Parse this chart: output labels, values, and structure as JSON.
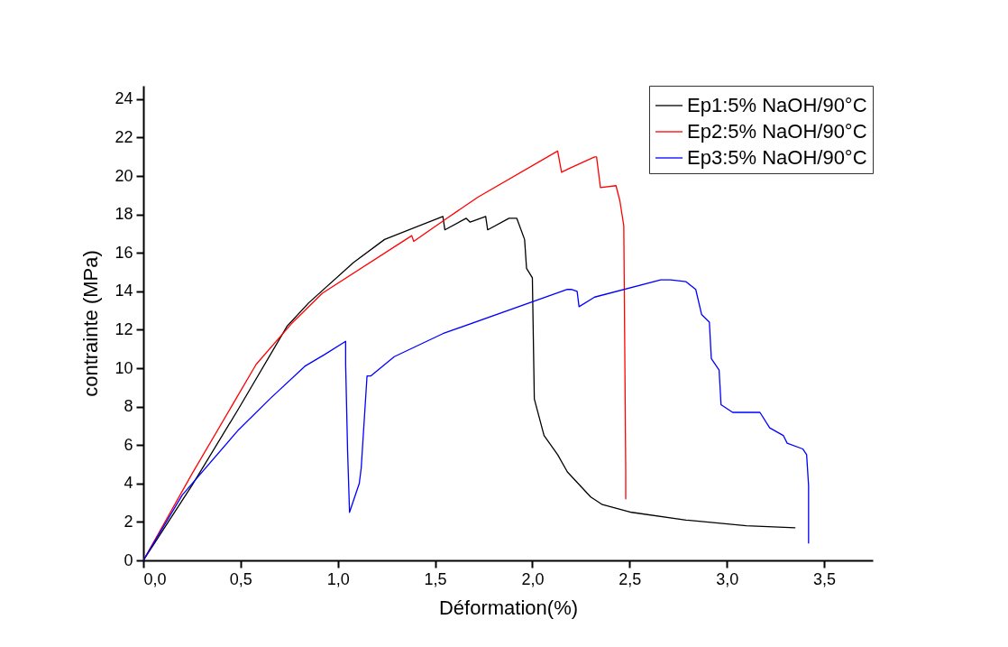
{
  "chart_data": {
    "type": "line",
    "xlabel": "Déformation(%)",
    "ylabel": "contrainte (MPa)",
    "xlim": [
      0,
      3.75
    ],
    "ylim": [
      0,
      24.7
    ],
    "xticks": [
      {
        "value": 0,
        "label": "0,0"
      },
      {
        "value": 0.5,
        "label": "0,5"
      },
      {
        "value": 1,
        "label": "1,0"
      },
      {
        "value": 1.5,
        "label": "1,5"
      },
      {
        "value": 2,
        "label": "2,0"
      },
      {
        "value": 2.5,
        "label": "2,5"
      },
      {
        "value": 3,
        "label": "3,0"
      },
      {
        "value": 3.5,
        "label": "3,5"
      }
    ],
    "yticks": [
      0,
      2,
      4,
      6,
      8,
      10,
      12,
      14,
      16,
      18,
      20,
      22,
      24
    ],
    "grid": false,
    "legend": "top right",
    "line_style": "solid",
    "marker": "none",
    "series": [
      {
        "name": "Ep1:5% NaOH/90°C",
        "color": "#000000",
        "x": [
          0,
          0.25,
          0.49,
          0.74,
          0.85,
          1.08,
          1.24,
          1.54,
          1.55,
          1.66,
          1.68,
          1.76,
          1.77,
          1.88,
          1.92,
          1.96,
          1.97,
          2.0,
          2.01,
          2.06,
          2.13,
          2.18,
          2.3,
          2.36,
          2.51,
          2.79,
          3.1,
          3.35
        ],
        "values": [
          0,
          3.9,
          7.9,
          12.2,
          13.4,
          15.5,
          16.7,
          17.9,
          17.2,
          17.8,
          17.6,
          17.9,
          17.2,
          17.8,
          17.8,
          16.7,
          15.2,
          14.7,
          8.4,
          6.5,
          5.5,
          4.6,
          3.3,
          2.9,
          2.5,
          2.1,
          1.8,
          1.7
        ]
      },
      {
        "name": "Ep2:5% NaOH/90°C",
        "color": "#ff0000",
        "x": [
          0,
          0.25,
          0.58,
          0.76,
          0.92,
          1.38,
          1.39,
          1.56,
          1.72,
          2.13,
          2.15,
          2.19,
          2.32,
          2.33,
          2.35,
          2.43,
          2.45,
          2.47,
          2.48,
          2.48
        ],
        "values": [
          0,
          4.5,
          10.2,
          12.3,
          13.9,
          16.9,
          16.6,
          17.8,
          18.9,
          21.3,
          20.2,
          20.4,
          21.0,
          21.0,
          19.4,
          19.5,
          18.7,
          17.4,
          4.6,
          3.2
        ]
      },
      {
        "name": "Ep3:5% NaOH/90°C",
        "color": "#0000ff",
        "x": [
          0,
          0.2,
          0.49,
          0.65,
          0.83,
          0.93,
          1.04,
          1.04,
          1.05,
          1.06,
          1.11,
          1.12,
          1.15,
          1.17,
          1.29,
          1.54,
          2.18,
          2.2,
          2.23,
          2.24,
          2.32,
          2.66,
          2.71,
          2.79,
          2.84,
          2.87,
          2.91,
          2.92,
          2.96,
          2.97,
          3.03,
          3.17,
          3.22,
          3.29,
          3.31,
          3.39,
          3.41,
          3.42,
          3.42
        ],
        "values": [
          0,
          3.4,
          6.8,
          8.4,
          10.1,
          10.7,
          11.4,
          10.2,
          5.7,
          2.5,
          4.0,
          4.8,
          9.6,
          9.6,
          10.6,
          11.8,
          14.1,
          14.1,
          14.0,
          13.2,
          13.7,
          14.6,
          14.6,
          14.5,
          14.1,
          12.8,
          12.4,
          10.5,
          9.9,
          8.1,
          7.7,
          7.7,
          6.9,
          6.5,
          6.1,
          5.8,
          5.5,
          3.9,
          0.9
        ]
      }
    ]
  }
}
